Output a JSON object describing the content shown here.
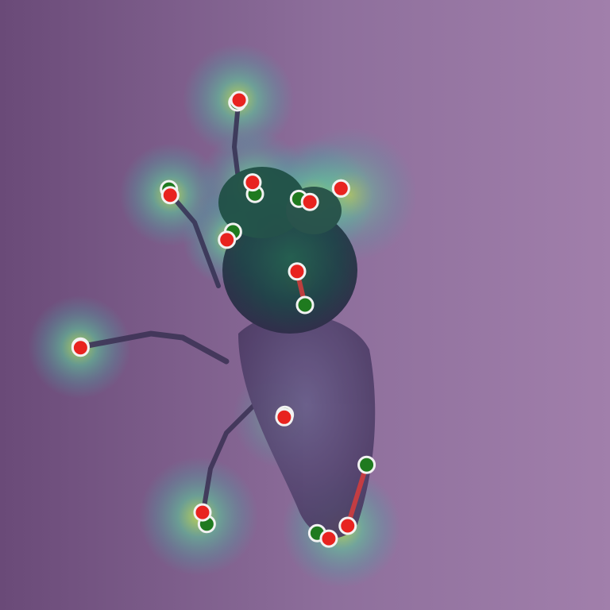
{
  "image": {
    "subject": "fly",
    "overlay": "keypoint-heatmap",
    "marker_colors": {
      "predicted": "#e8231f",
      "ground_truth": "#1f7a1f",
      "error_line": "#d83c3c",
      "ring": "#f2f2f2"
    }
  },
  "keypoints": [
    {
      "id": "kp-1",
      "pred": [
        0.392,
        0.164
      ],
      "gt": [
        0.389,
        0.168
      ]
    },
    {
      "id": "kp-2",
      "pred": [
        0.279,
        0.32
      ],
      "gt": [
        0.277,
        0.31
      ]
    },
    {
      "id": "kp-3",
      "pred": [
        0.414,
        0.299
      ],
      "gt": [
        0.418,
        0.318
      ]
    },
    {
      "id": "kp-4",
      "pred": [
        0.508,
        0.331
      ],
      "gt": [
        0.49,
        0.326
      ]
    },
    {
      "id": "kp-5",
      "pred": [
        0.559,
        0.309
      ],
      "gt": [
        0.559,
        0.309
      ]
    },
    {
      "id": "kp-6",
      "pred": [
        0.372,
        0.393
      ],
      "gt": [
        0.382,
        0.38
      ]
    },
    {
      "id": "kp-7",
      "pred": [
        0.487,
        0.445
      ],
      "gt": [
        0.5,
        0.5
      ]
    },
    {
      "id": "kp-8",
      "pred": [
        0.132,
        0.57
      ],
      "gt": [
        0.132,
        0.568
      ]
    },
    {
      "id": "kp-9",
      "pred": [
        0.466,
        0.684
      ],
      "gt": [
        0.467,
        0.68
      ]
    },
    {
      "id": "kp-10",
      "pred": [
        0.332,
        0.84
      ],
      "gt": [
        0.339,
        0.859
      ]
    },
    {
      "id": "kp-11",
      "pred": [
        0.57,
        0.862
      ],
      "gt": [
        0.601,
        0.762
      ]
    },
    {
      "id": "kp-12",
      "pred": [
        0.539,
        0.883
      ],
      "gt": [
        0.52,
        0.874
      ]
    }
  ]
}
